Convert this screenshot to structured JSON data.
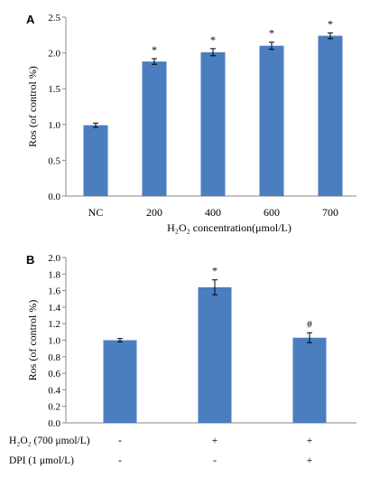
{
  "chart_data": [
    {
      "panel_label": "A",
      "type": "bar",
      "title": "",
      "xlabel": "H₂O₂ concentration(μmol/L)",
      "ylabel": "Ros (of control %)",
      "ylim": [
        0,
        2.5
      ],
      "yticks": [
        "0.0",
        "0.5",
        "1.0",
        "1.5",
        "2.0",
        "2.5"
      ],
      "categories": [
        "NC",
        "200",
        "400",
        "600",
        "700"
      ],
      "values": [
        0.99,
        1.88,
        2.01,
        2.1,
        2.24
      ],
      "errors": [
        0.03,
        0.04,
        0.05,
        0.05,
        0.04
      ],
      "annotations": [
        "",
        "*",
        "*",
        "*",
        "*"
      ],
      "bar_color": "#4a7ebf",
      "grid": false,
      "legend": "none"
    },
    {
      "panel_label": "B",
      "type": "bar",
      "title": "",
      "xlabel": "",
      "ylabel": "Ros (of control %)",
      "ylim": [
        0,
        2.0
      ],
      "yticks": [
        "0.0",
        "0.2",
        "0.4",
        "0.6",
        "0.8",
        "1.0",
        "1.2",
        "1.4",
        "1.6",
        "1.8",
        "2.0"
      ],
      "categories": [
        "",
        "",
        ""
      ],
      "values": [
        1.0,
        1.64,
        1.03
      ],
      "errors": [
        0.02,
        0.09,
        0.06
      ],
      "annotations": [
        "",
        "*",
        "#"
      ],
      "treatment_rows": [
        {
          "label": "H₂O₂ (700 μmol/L)",
          "marks": [
            "-",
            "+",
            "+"
          ]
        },
        {
          "label": "DPI (1 μmol/L)",
          "marks": [
            "-",
            "-",
            "+"
          ]
        }
      ],
      "bar_color": "#4a7ebf",
      "grid": false,
      "legend": "none"
    }
  ]
}
